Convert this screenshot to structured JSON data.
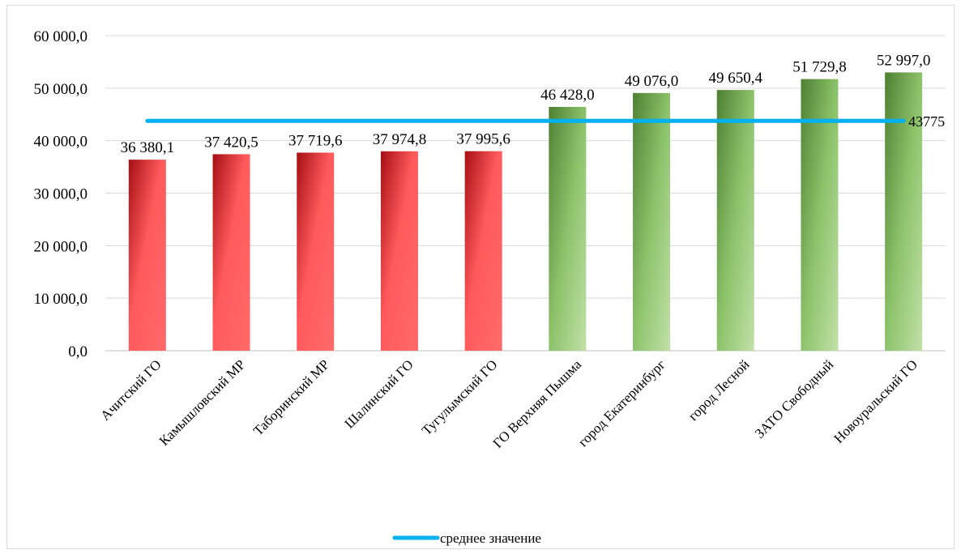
{
  "chart_data": {
    "type": "bar",
    "categories": [
      "Ачитский ГО",
      "Камышловский МР",
      "Таборинский МР",
      "Шалинский ГО",
      "Тугулымский ГО",
      "ГО Верхняя Пышма",
      "город Екатеринбург",
      "город Лесной",
      "ЗАТО Свободный",
      "Новоуральский ГО"
    ],
    "values": [
      36380.1,
      37420.5,
      37719.6,
      37974.8,
      37995.6,
      46428.0,
      49076.0,
      49650.4,
      51729.8,
      52997.0
    ],
    "value_labels": [
      "36 380,1",
      "37 420,5",
      "37 719,6",
      "37 974,8",
      "37 995,6",
      "46 428,0",
      "49 076,0",
      "49 650,4",
      "51 729,8",
      "52 997,0"
    ],
    "groups": [
      "low",
      "low",
      "low",
      "low",
      "low",
      "high",
      "high",
      "high",
      "high",
      "high"
    ],
    "group_colors": {
      "low": "#ff6060",
      "high": "#7fb159"
    },
    "average": {
      "name": "среднее значение",
      "value": 43775,
      "label": "43775",
      "color": "#00b0f0"
    },
    "ylim": [
      0,
      60000
    ],
    "yticks": [
      0,
      10000,
      20000,
      30000,
      40000,
      50000,
      60000
    ],
    "ytick_labels": [
      "0,0",
      "10 000,0",
      "20 000,0",
      "30 000,0",
      "40 000,0",
      "50 000,0",
      "60 000,0"
    ],
    "title": "",
    "xlabel": "",
    "ylabel": "",
    "grid": true,
    "legend": "bottom"
  }
}
